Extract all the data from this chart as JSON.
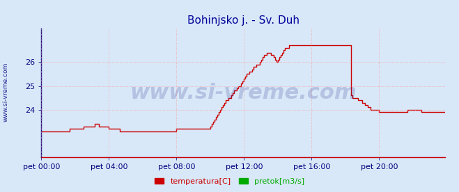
{
  "title": "Bohinjsko j. - Sv. Duh",
  "title_color": "#000099",
  "title_fontsize": 11,
  "bg_color": "#d8e8f8",
  "plot_bg_color": "#d8e8f8",
  "grid_color": "#ff9999",
  "grid_style": ":",
  "xlim": [
    0,
    287
  ],
  "ylim": [
    22.0,
    27.4
  ],
  "yticks": [
    24,
    25,
    26
  ],
  "xtick_labels": [
    "pet 00:00",
    "pet 04:00",
    "pet 08:00",
    "pet 12:00",
    "pet 16:00",
    "pet 20:00"
  ],
  "xtick_positions": [
    0,
    48,
    96,
    144,
    192,
    240
  ],
  "tick_color": "#000080",
  "tick_fontsize": 8,
  "line_color": "#cc0000",
  "line_width": 1.0,
  "flow_line_color": "#0000dd",
  "flow_line_y": 22.02,
  "watermark": "www.si-vreme.com",
  "watermark_color": "#1a1a80",
  "watermark_alpha": 0.18,
  "watermark_fontsize": 22,
  "legend_items": [
    "temperatura[C]",
    "pretok[m3/s]"
  ],
  "legend_colors": [
    "#cc0000",
    "#00aa00"
  ],
  "ylabel_text": "www.si-vreme.com",
  "ylabel_color": "#000080",
  "ylabel_fontsize": 6.5,
  "temp_data": [
    23.1,
    23.1,
    23.1,
    23.1,
    23.1,
    23.1,
    23.1,
    23.1,
    23.1,
    23.1,
    23.1,
    23.1,
    23.1,
    23.1,
    23.1,
    23.1,
    23.1,
    23.1,
    23.1,
    23.1,
    23.2,
    23.2,
    23.2,
    23.2,
    23.2,
    23.2,
    23.2,
    23.2,
    23.2,
    23.2,
    23.3,
    23.3,
    23.3,
    23.3,
    23.3,
    23.3,
    23.3,
    23.3,
    23.4,
    23.4,
    23.4,
    23.3,
    23.3,
    23.3,
    23.3,
    23.3,
    23.3,
    23.3,
    23.2,
    23.2,
    23.2,
    23.2,
    23.2,
    23.2,
    23.2,
    23.2,
    23.1,
    23.1,
    23.1,
    23.1,
    23.1,
    23.1,
    23.1,
    23.1,
    23.1,
    23.1,
    23.1,
    23.1,
    23.1,
    23.1,
    23.1,
    23.1,
    23.1,
    23.1,
    23.1,
    23.1,
    23.1,
    23.1,
    23.1,
    23.1,
    23.1,
    23.1,
    23.1,
    23.1,
    23.1,
    23.1,
    23.1,
    23.1,
    23.1,
    23.1,
    23.1,
    23.1,
    23.1,
    23.1,
    23.1,
    23.1,
    23.2,
    23.2,
    23.2,
    23.2,
    23.2,
    23.2,
    23.2,
    23.2,
    23.2,
    23.2,
    23.2,
    23.2,
    23.2,
    23.2,
    23.2,
    23.2,
    23.2,
    23.2,
    23.2,
    23.2,
    23.2,
    23.2,
    23.2,
    23.2,
    23.3,
    23.4,
    23.5,
    23.6,
    23.7,
    23.8,
    23.9,
    24.0,
    24.1,
    24.2,
    24.3,
    24.4,
    24.4,
    24.5,
    24.5,
    24.6,
    24.7,
    24.8,
    24.8,
    24.9,
    25.0,
    25.0,
    25.1,
    25.2,
    25.3,
    25.4,
    25.5,
    25.5,
    25.6,
    25.6,
    25.7,
    25.8,
    25.8,
    25.9,
    25.9,
    26.0,
    26.1,
    26.2,
    26.3,
    26.3,
    26.4,
    26.4,
    26.4,
    26.3,
    26.3,
    26.2,
    26.1,
    26.0,
    26.1,
    26.2,
    26.3,
    26.4,
    26.5,
    26.6,
    26.6,
    26.6,
    26.7,
    26.7,
    26.7,
    26.7,
    26.7,
    26.7,
    26.7,
    26.7,
    26.7,
    26.7,
    26.7,
    26.7,
    26.7,
    26.7,
    26.7,
    26.7,
    26.7,
    26.7,
    26.7,
    26.7,
    26.7,
    26.7,
    26.7,
    26.7,
    26.7,
    26.7,
    26.7,
    26.7,
    26.7,
    26.7,
    26.7,
    26.7,
    26.7,
    26.7,
    26.7,
    26.7,
    26.7,
    26.7,
    26.7,
    26.7,
    26.7,
    26.7,
    26.7,
    26.7,
    24.6,
    24.5,
    24.5,
    24.5,
    24.5,
    24.4,
    24.4,
    24.4,
    24.3,
    24.3,
    24.2,
    24.2,
    24.1,
    24.1,
    24.0,
    24.0,
    24.0,
    24.0,
    24.0,
    24.0,
    23.9,
    23.9,
    23.9,
    23.9,
    23.9,
    23.9,
    23.9,
    23.9,
    23.9,
    23.9,
    23.9,
    23.9,
    23.9,
    23.9,
    23.9,
    23.9,
    23.9,
    23.9,
    23.9,
    23.9,
    24.0,
    24.0,
    24.0,
    24.0,
    24.0,
    24.0,
    24.0,
    24.0,
    24.0,
    24.0,
    23.9,
    23.9,
    23.9,
    23.9,
    23.9,
    23.9,
    23.9,
    23.9,
    23.9,
    23.9,
    23.9,
    23.9,
    23.9,
    23.9,
    23.9,
    23.9,
    23.9,
    23.9,
    23.9,
    23.9,
    23.9,
    23.9,
    23.9,
    23.9,
    23.9,
    23.9,
    23.9,
    23.9
  ]
}
